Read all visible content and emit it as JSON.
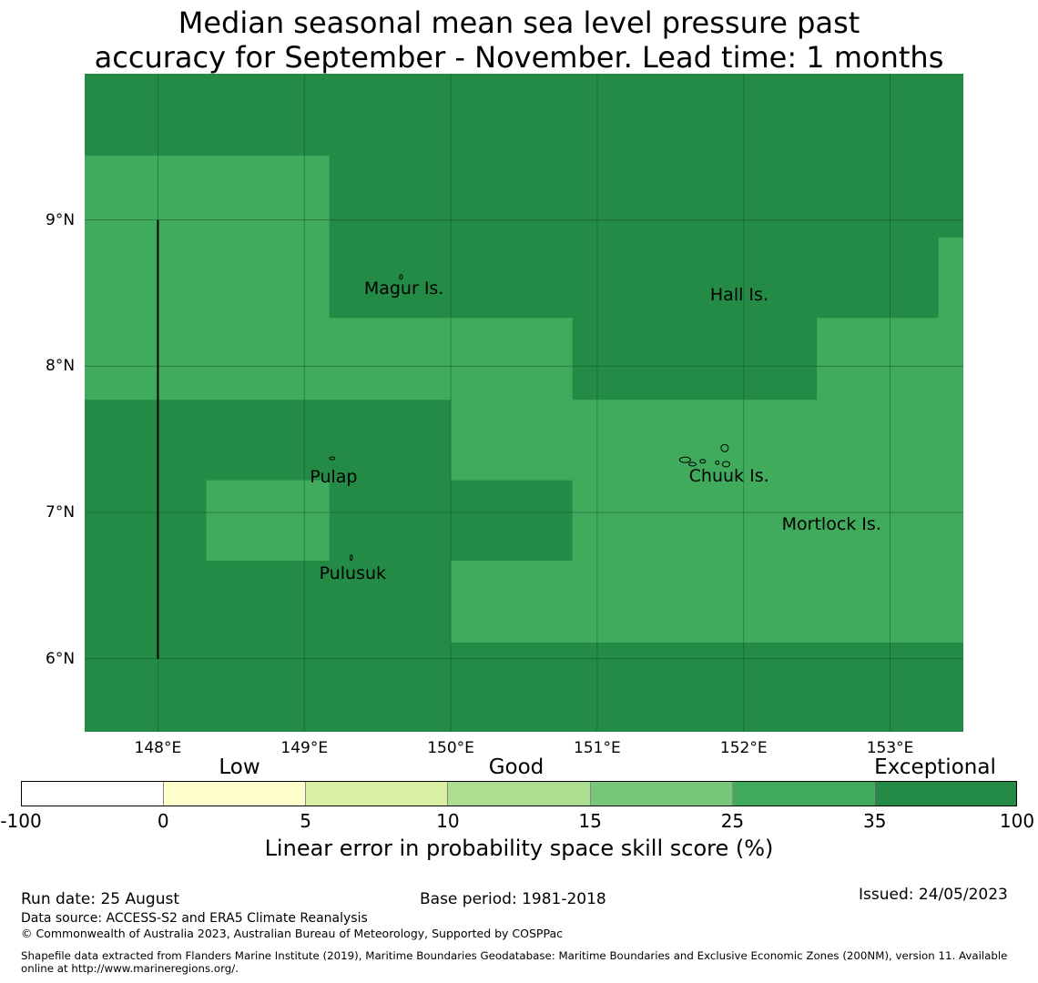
{
  "title": {
    "line1": "Median seasonal mean sea level pressure past",
    "line2": "accuracy for September - November. Lead time: 1 months"
  },
  "map": {
    "lat_ticks": [
      "9°N",
      "8°N",
      "7°N",
      "6°N"
    ],
    "lon_ticks": [
      "148°E",
      "149°E",
      "150°E",
      "151°E",
      "152°E",
      "153°E"
    ],
    "extent": {
      "lon_min": 147.5,
      "lon_max": 153.5,
      "lat_min": 5.5,
      "lat_max": 10.0
    },
    "places": [
      {
        "name": "Magur Is.",
        "lon": 149.68,
        "lat": 8.53
      },
      {
        "name": "Hall Is.",
        "lon": 151.97,
        "lat": 8.49
      },
      {
        "name": "Pulap",
        "lon": 149.2,
        "lat": 7.24
      },
      {
        "name": "Chuuk Is.",
        "lon": 151.9,
        "lat": 7.25
      },
      {
        "name": "Mortlock Is.",
        "lon": 152.6,
        "lat": 6.92
      },
      {
        "name": "Pulusuk",
        "lon": 149.33,
        "lat": 6.58
      }
    ],
    "colors": {
      "exceptional_35_100": "#238b45",
      "good_25_35": "#41ab5d"
    },
    "cells": [
      {
        "lon0": 147.5,
        "lon1": 153.5,
        "lat0": 5.5,
        "lat1": 10.0,
        "category": "35-100"
      },
      {
        "lon0": 147.5,
        "lon1": 149.17,
        "lat0": 7.77,
        "lat1": 9.44,
        "category": "25-35"
      },
      {
        "lon0": 149.17,
        "lon1": 150.83,
        "lat0": 7.77,
        "lat1": 8.33,
        "category": "25-35"
      },
      {
        "lon0": 150.0,
        "lon1": 150.83,
        "lat0": 7.22,
        "lat1": 7.77,
        "category": "25-35"
      },
      {
        "lon0": 150.0,
        "lon1": 153.5,
        "lat0": 6.11,
        "lat1": 6.67,
        "category": "25-35"
      },
      {
        "lon0": 150.83,
        "lon1": 153.5,
        "lat0": 6.67,
        "lat1": 7.77,
        "category": "25-35"
      },
      {
        "lon0": 152.5,
        "lon1": 153.5,
        "lat0": 7.77,
        "lat1": 8.33,
        "category": "25-35"
      },
      {
        "lon0": 153.33,
        "lon1": 153.5,
        "lat0": 8.33,
        "lat1": 8.88,
        "category": "25-35"
      },
      {
        "lon0": 148.33,
        "lon1": 149.17,
        "lat0": 6.67,
        "lat1": 7.22,
        "category": "25-35"
      }
    ],
    "boundary_line": {
      "lon": 148.0,
      "lat0": 6.0,
      "lat1": 9.0
    }
  },
  "legend": {
    "categories": [
      "Low",
      "Good",
      "Exceptional"
    ],
    "ticks": [
      "-100",
      "0",
      "5",
      "10",
      "15",
      "25",
      "35",
      "100"
    ],
    "colors": [
      "#ffffff",
      "#ffffcc",
      "#d9f0a3",
      "#addd8e",
      "#78c679",
      "#41ab5d",
      "#238b45"
    ],
    "label": "Linear error in probability space skill score (%)"
  },
  "footer": {
    "run_date": "Run date: 25 August",
    "base_period": "Base period: 1981-2018",
    "issued": "Issued: 24/05/2023",
    "data_source": "Data source: ACCESS-S2 and ERA5 Climate Reanalysis",
    "copyright": "© Commonwealth of Australia 2023, Australian Bureau of Meteorology, Supported by COSPPac",
    "shapefile_line1": "Shapefile data extracted from Flanders Marine Institute (2019), Maritime Boundaries Geodatabase: Maritime Boundaries and Exclusive Economic Zones (200NM), version 11. Available",
    "shapefile_line2": "online at http://www.marineregions.org/."
  }
}
